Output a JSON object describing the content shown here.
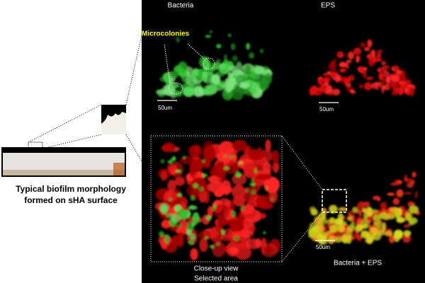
{
  "panels": {
    "bacteria": {
      "title": "Bacteria",
      "annotation": "Microcolonies",
      "scale": "50um"
    },
    "eps": {
      "title": "EPS",
      "scale": "50um"
    },
    "merged": {
      "title": "Bacteria + EPS",
      "scale": "50um"
    },
    "closeup": {
      "caption": [
        "Close-up view",
        "Selected area"
      ]
    }
  },
  "sample": {
    "caption": [
      "Typical biofilm morphology",
      "formed on sHA surface"
    ]
  }
}
